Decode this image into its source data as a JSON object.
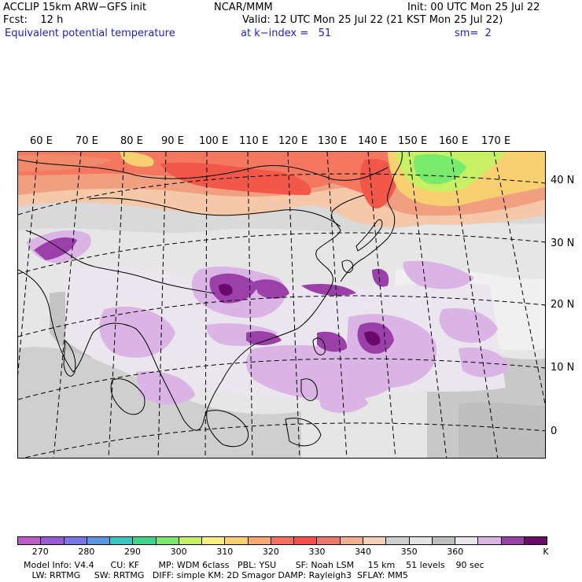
{
  "header": {
    "line1_left": "ACCLIP 15km ARW−GFS init",
    "line1_mid": "NCAR/MMM",
    "line1_right": "Init: 00 UTC Mon 25 Jul 22",
    "fcst_label": "Fcst:    12 h",
    "valid": "Valid: 12 UTC Mon 25 Jul 22 (21 KST Mon 25 Jul 22)",
    "field": "Equivalent potential temperature",
    "level": "at k−index =   51",
    "smoothing": "sm=  2"
  },
  "map": {
    "lon_labels": [
      "60 E",
      "70 E",
      "80 E",
      "90 E",
      "100 E",
      "110 E",
      "120 E",
      "130 E",
      "140 E",
      "150 E",
      "160 E",
      "170 E"
    ],
    "lat_labels": [
      "40 N",
      "30 N",
      "20 N",
      "10 N",
      "0"
    ]
  },
  "colorbar": {
    "colors": [
      "#c05ac8",
      "#9b5ad6",
      "#7a76e8",
      "#5a96e6",
      "#36c8c0",
      "#3cd68a",
      "#78ea6c",
      "#c8f064",
      "#f8f07a",
      "#f8d070",
      "#f8aa6e",
      "#f87060",
      "#f85048",
      "#f07868",
      "#f0b090",
      "#f4d0b4",
      "#d0d0d0",
      "#e4e4e4",
      "#bebebe",
      "#ebe6ee",
      "#dbb4e6",
      "#9a40a8",
      "#6c0a6c"
    ],
    "labels": [
      "270",
      "280",
      "290",
      "300",
      "310",
      "320",
      "330",
      "340",
      "350",
      "360"
    ],
    "unit": "K"
  },
  "footer": {
    "line1": "Model Info: V4.4      CU: KF       MP: WDM 6class   PBL: YSU       SF: Noah LSM     15 km    51 levels    90 sec",
    "line2": "   LW: RRTMG     SW: RRTMG   DIFF: simple KM: 2D Smagor DAMP: Rayleigh3  SFLAY: MM5"
  }
}
